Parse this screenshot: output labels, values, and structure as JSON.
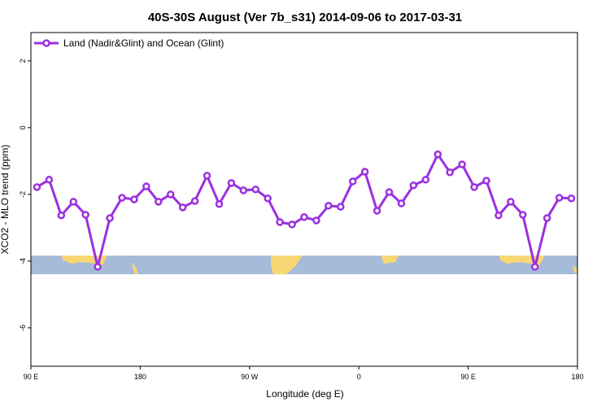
{
  "chart_data": {
    "type": "line",
    "title": "40S-30S August (Ver 7b_s31)   2014-09-06 to 2017-03-31",
    "xlabel": "Longitude (deg E)",
    "ylabel": "XCO2 - MLO trend (ppm)",
    "x": [
      95,
      105,
      115,
      125,
      135,
      145,
      155,
      165,
      175,
      185,
      195,
      205,
      215,
      225,
      235,
      245,
      255,
      265,
      275,
      285,
      295,
      305,
      315,
      325,
      335,
      345,
      355,
      365,
      375,
      385,
      395,
      405,
      415,
      425,
      435,
      445,
      455,
      465,
      475,
      485,
      495,
      505,
      515,
      525,
      535
    ],
    "series": [
      {
        "name": "Land (Nadir&Glint) and Ocean (Glint)",
        "color": "#9b30e0",
        "values": [
          -1.78,
          -1.56,
          -2.63,
          -2.22,
          -2.61,
          -4.17,
          -2.71,
          -2.1,
          -2.15,
          -1.76,
          -2.22,
          -2.0,
          -2.39,
          -2.2,
          -1.44,
          -2.29,
          -1.66,
          -1.88,
          -1.85,
          -2.12,
          -2.83,
          -2.9,
          -2.68,
          -2.78,
          -2.34,
          -2.37,
          -1.61,
          -1.32,
          -2.49,
          -1.93,
          -2.27,
          -1.73,
          -1.56,
          -0.8,
          -1.34,
          -1.1,
          -1.78,
          -1.59,
          -2.63,
          -2.22,
          -2.61,
          -4.17,
          -2.71,
          -2.1,
          -2.12
        ]
      }
    ],
    "xlim": [
      90,
      540
    ],
    "xticks": [
      {
        "value": 90,
        "label": "90 E"
      },
      {
        "value": 180,
        "label": "180"
      },
      {
        "value": 270,
        "label": "90 W"
      },
      {
        "value": 360,
        "label": "0"
      },
      {
        "value": 450,
        "label": "90 E"
      },
      {
        "value": 540,
        "label": "180"
      }
    ],
    "ylim": [
      -7.15,
      2.85
    ],
    "yticks": [
      2,
      0,
      -2,
      -4,
      -6
    ],
    "legend": "top-left"
  }
}
